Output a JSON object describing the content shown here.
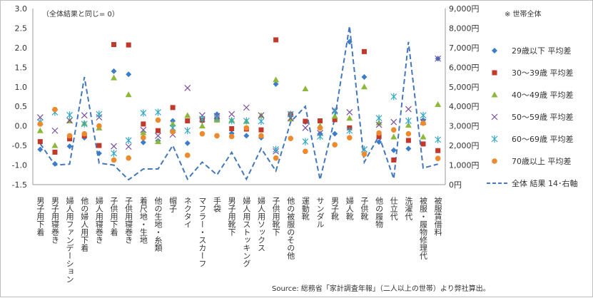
{
  "chart_data": {
    "type": "scatter",
    "note": "（全体結果と同じ= 0）",
    "legend_note": "※ 世帯全体",
    "source": "Source: 総務省「家計調査年報」（二人以上の世帯）より弊社算出。",
    "categories": [
      "男子用下着",
      "男子用寝巻き",
      "婦人用ファンデーション",
      "他の婦人用下着",
      "婦人用寝巻き",
      "子供用下着",
      "子供用寝巻き",
      "着尺地・生地",
      "他の生地・糸類",
      "帽子",
      "ネクタイ",
      "マフラー・スカーフ",
      "手袋",
      "男子用靴下",
      "婦人用ストッキング",
      "婦人用ソックス",
      "子供用靴下",
      "他の被服のその他",
      "運動靴",
      "サンダル",
      "男子靴",
      "婦人靴",
      "子供靴",
      "他の履物",
      "仕立代",
      "洗濯代",
      "被服・履物修理代",
      "被服賃借料"
    ],
    "left_axis": {
      "min": -1.5,
      "max": 3.0,
      "step": 0.5,
      "ticks": [
        "-1.5",
        "-1.0",
        "-0.5",
        "0.0",
        "0.5",
        "1.0",
        "1.5",
        "2.0",
        "2.5",
        "3.0"
      ]
    },
    "right_axis": {
      "min": 0,
      "max": 9000,
      "step": 1000,
      "ticks": [
        "0円",
        "1,000円",
        "2,000円",
        "3,000円",
        "4,000円",
        "5,000円",
        "6,000円",
        "7,000円",
        "8,000円",
        "9,000円"
      ]
    },
    "series": [
      {
        "name": "29歳以下 平均差",
        "marker": "diamond",
        "color": "#3d7cc9",
        "values": [
          -0.6,
          -0.97,
          -0.52,
          -0.3,
          -0.7,
          1.4,
          1.32,
          -0.42,
          -0.38,
          0.13,
          -0.44,
          0.13,
          0.3,
          -0.19,
          -0.25,
          -0.3,
          1.07,
          0.3,
          0.1,
          -0.2,
          -0.2,
          2.15,
          1.25,
          -0.41,
          -0.62,
          -0.58,
          0.15,
          1.72
        ]
      },
      {
        "name": "30～39歳 平均差",
        "marker": "square",
        "color": "#c0392b",
        "values": [
          -0.4,
          -0.67,
          -0.33,
          -0.25,
          -0.5,
          2.08,
          2.07,
          0.05,
          -0.12,
          0.47,
          0.13,
          0.15,
          0.18,
          -0.07,
          -0.08,
          -0.1,
          2.2,
          0.3,
          0.12,
          0.13,
          0.16,
          -0.05,
          1.9,
          -0.27,
          -0.87,
          -0.37,
          -0.46,
          -0.63
        ]
      },
      {
        "name": "40～49歳 平均差",
        "marker": "triangle",
        "color": "#8db83c",
        "values": [
          -0.12,
          -0.5,
          0.13,
          0.07,
          -0.05,
          1.23,
          0.8,
          -0.17,
          -0.4,
          0.05,
          0.27,
          0.0,
          0.15,
          0.15,
          0.12,
          0.27,
          1.18,
          0.18,
          0.95,
          0.0,
          0.25,
          0.2,
          1.0,
          0.08,
          -0.28,
          0.02,
          -0.28,
          0.55
        ]
      },
      {
        "name": "50～59歳 平均差",
        "marker": "x",
        "color": "#7b4fa0",
        "values": [
          0.22,
          -0.12,
          0.14,
          0.27,
          0.22,
          -0.52,
          -0.53,
          -0.1,
          -0.25,
          -0.22,
          0.97,
          0.27,
          0.25,
          0.3,
          0.47,
          0.27,
          -0.65,
          0.2,
          -0.05,
          -0.18,
          0.4,
          0.35,
          -0.6,
          0.03,
          0.1,
          0.43,
          0.1,
          1.72
        ]
      },
      {
        "name": "60～69歳 平均差",
        "marker": "asterisk",
        "color": "#33a8c4",
        "values": [
          0.1,
          0.35,
          0.28,
          0.05,
          0.3,
          -0.7,
          -0.37,
          0.33,
          0.35,
          -0.05,
          -0.12,
          0.18,
          0.2,
          0.13,
          0.13,
          0.12,
          -0.6,
          0.3,
          -0.4,
          -0.27,
          0.37,
          -0.12,
          -0.6,
          0.2,
          0.75,
          0.13,
          0.27,
          -0.35
        ]
      },
      {
        "name": "70歳以上 平均差",
        "marker": "circle",
        "color": "#ee8a2e",
        "values": [
          0.05,
          0.42,
          -0.25,
          -0.2,
          0.0,
          -0.87,
          -0.82,
          -0.3,
          0.15,
          -0.15,
          -0.75,
          -0.2,
          -0.25,
          -0.27,
          -0.05,
          -0.25,
          -0.82,
          -0.32,
          -0.65,
          -0.05,
          -0.48,
          -0.3,
          -0.72,
          -0.18,
          -0.1,
          -0.2,
          0.07,
          -0.83
        ]
      },
      {
        "name": "全体 結果 14･右軸",
        "marker": "dashed-line",
        "color": "#4477bb",
        "axis": "right",
        "values": [
          2100,
          1000,
          1050,
          5500,
          1100,
          1000,
          250,
          800,
          800,
          2000,
          280,
          1150,
          500,
          1650,
          280,
          1850,
          700,
          3200,
          4000,
          250,
          3400,
          8100,
          1150,
          2500,
          300,
          7300,
          850,
          1050
        ]
      }
    ]
  }
}
